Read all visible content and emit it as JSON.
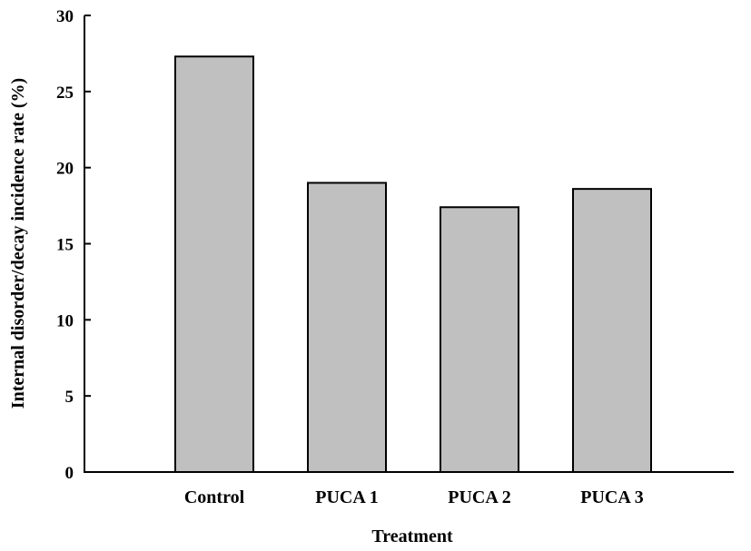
{
  "chart_data": {
    "type": "bar",
    "title": "",
    "xlabel": "Treatment",
    "ylabel": "Internal disorder/decay incidence rate (%)",
    "categories": [
      "Control",
      "PUCA 1",
      "PUCA 2",
      "PUCA 3"
    ],
    "values": [
      27.3,
      19.0,
      17.4,
      18.6
    ],
    "ylim": [
      0,
      30
    ],
    "yticks": [
      0,
      5,
      10,
      15,
      20,
      25,
      30
    ],
    "grid": false,
    "legend": "none",
    "colors": {
      "bar_fill": "#c0c0c0",
      "bar_stroke": "#000000",
      "axis": "#000000"
    }
  }
}
